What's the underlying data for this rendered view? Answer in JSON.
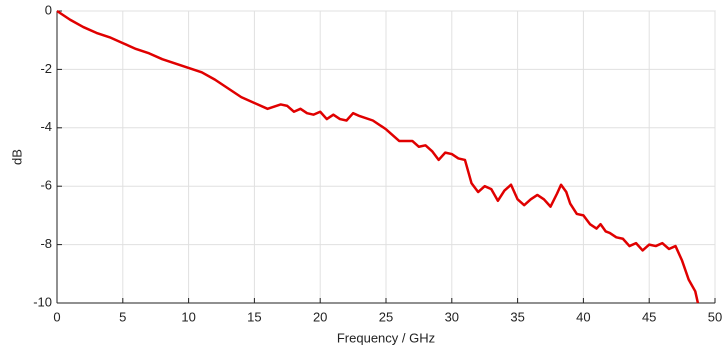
{
  "chart_data": {
    "type": "line",
    "xlabel": "Frequency / GHz",
    "ylabel": "dB",
    "x": [
      0,
      1,
      2,
      3,
      4,
      5,
      6,
      7,
      8,
      9,
      10,
      11,
      12,
      13,
      14,
      15,
      16,
      17,
      17.5,
      18,
      18.5,
      19,
      19.5,
      20,
      20.5,
      21,
      21.5,
      22,
      22.5,
      23,
      24,
      25,
      26,
      27,
      27.5,
      28,
      28.5,
      29,
      29.5,
      30,
      30.5,
      31,
      31.5,
      32,
      32.5,
      33,
      33.5,
      34,
      34.5,
      35,
      35.5,
      36,
      36.5,
      37,
      37.5,
      38,
      38.3,
      38.7,
      39,
      39.5,
      40,
      40.5,
      41,
      41.3,
      41.7,
      42,
      42.5,
      43,
      43.5,
      44,
      44.5,
      45,
      45.5,
      46,
      46.5,
      47,
      47.5,
      48,
      48.5,
      48.7
    ],
    "series": [
      {
        "color": "#e00000",
        "values": [
          0,
          -0.3,
          -0.55,
          -0.75,
          -0.9,
          -1.1,
          -1.3,
          -1.45,
          -1.65,
          -1.8,
          -1.95,
          -2.1,
          -2.35,
          -2.65,
          -2.95,
          -3.15,
          -3.35,
          -3.2,
          -3.25,
          -3.45,
          -3.35,
          -3.5,
          -3.55,
          -3.45,
          -3.7,
          -3.55,
          -3.7,
          -3.75,
          -3.5,
          -3.6,
          -3.75,
          -4.05,
          -4.45,
          -4.45,
          -4.65,
          -4.6,
          -4.8,
          -5.1,
          -4.85,
          -4.9,
          -5.05,
          -5.1,
          -5.9,
          -6.2,
          -6.0,
          -6.1,
          -6.5,
          -6.15,
          -5.95,
          -6.45,
          -6.65,
          -6.45,
          -6.3,
          -6.45,
          -6.7,
          -6.25,
          -5.95,
          -6.2,
          -6.6,
          -6.95,
          -7.0,
          -7.3,
          -7.45,
          -7.3,
          -7.55,
          -7.6,
          -7.75,
          -7.8,
          -8.05,
          -7.95,
          -8.2,
          -8.0,
          -8.05,
          -7.95,
          -8.15,
          -8.05,
          -8.55,
          -9.2,
          -9.6,
          -10
        ]
      }
    ],
    "xlim": [
      0,
      50
    ],
    "xticks": [
      0,
      5,
      10,
      15,
      20,
      25,
      30,
      35,
      40,
      45,
      50
    ],
    "ylim": [
      -10,
      0
    ],
    "yticks": [
      -10,
      -8,
      -6,
      -4,
      -2,
      0
    ],
    "grid": true
  }
}
